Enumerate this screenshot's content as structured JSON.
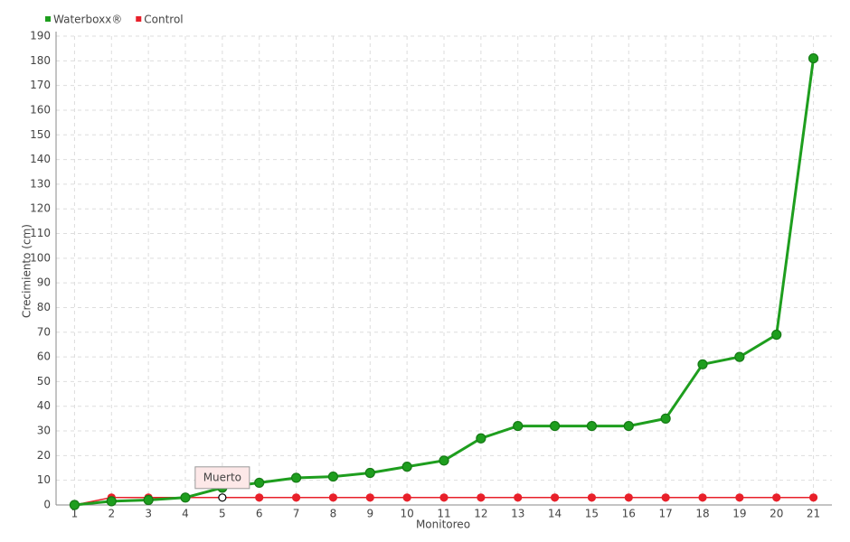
{
  "chart_data": {
    "type": "line",
    "y_label": "Crecimiento (cm)",
    "x_label": "Monitoreo",
    "categories": [
      "1",
      "2",
      "3",
      "4",
      "5",
      "6",
      "7",
      "8",
      "9",
      "10",
      "11",
      "12",
      "13",
      "14",
      "15",
      "16",
      "17",
      "18",
      "19",
      "20",
      "21"
    ],
    "series": [
      {
        "name": "Waterboxx®",
        "color": "#1e9e1e",
        "values": [
          0,
          1.5,
          2,
          3,
          7,
          9,
          11,
          11.5,
          13,
          15.5,
          18,
          27,
          32,
          32,
          32,
          32,
          35,
          57,
          60,
          69,
          181
        ]
      },
      {
        "name": "Control",
        "color": "#e8202a",
        "values": [
          0,
          3,
          3,
          3,
          3,
          3,
          3,
          3,
          3,
          3,
          3,
          3,
          3,
          3,
          3,
          3,
          3,
          3,
          3,
          3,
          3
        ]
      }
    ],
    "annotation": "Muerto",
    "ylim": [
      0,
      190
    ],
    "yticks": [
      0,
      10,
      20,
      30,
      40,
      50,
      60,
      70,
      80,
      90,
      100,
      110,
      120,
      130,
      140,
      150,
      160,
      170,
      180,
      190
    ],
    "grid": true,
    "legend": "top-left"
  }
}
